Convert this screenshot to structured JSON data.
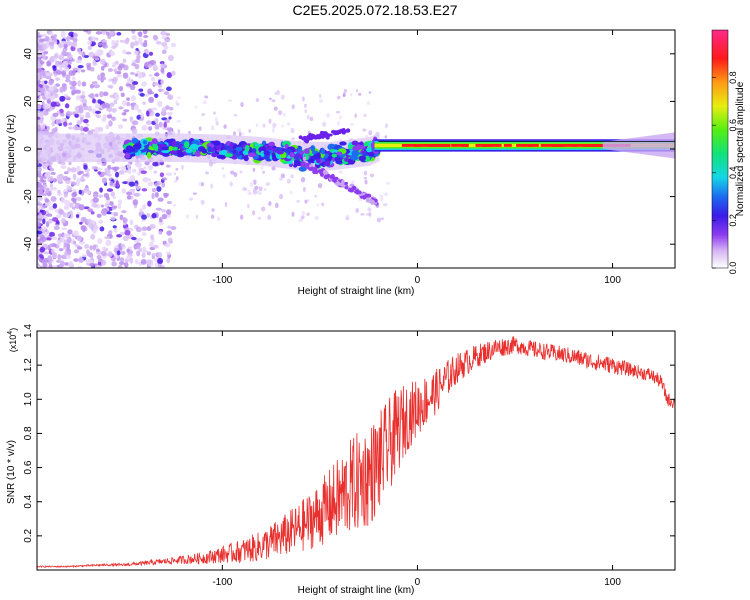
{
  "title": "C2E5.2025.072.18.53.E27",
  "colors": {
    "signal_line": "#e8302e",
    "axis": "#000000",
    "ridge": "#ff1a1a"
  },
  "chart_data": [
    {
      "type": "heatmap",
      "name": "spectrogram",
      "xlabel": "Height of straight line (km)",
      "ylabel": "Frequency (Hz)",
      "xlim": [
        -195,
        132
      ],
      "ylim": [
        -50,
        50
      ],
      "x_ticks": [
        {
          "value": -100,
          "label": "-100"
        },
        {
          "value": 0,
          "label": "0"
        },
        {
          "value": 100,
          "label": "100"
        }
      ],
      "y_ticks": [
        {
          "value": 40,
          "label": "40"
        },
        {
          "value": 20,
          "label": "20"
        },
        {
          "value": 0,
          "label": "0"
        },
        {
          "value": -20,
          "label": "-20"
        },
        {
          "value": -40,
          "label": "-40"
        }
      ],
      "ridge": [
        {
          "x": -190,
          "y": 0.5
        },
        {
          "x": -150,
          "y": 0.5
        },
        {
          "x": -120,
          "y": 0.5
        },
        {
          "x": -100,
          "y": 0
        },
        {
          "x": -80,
          "y": -1
        },
        {
          "x": -60,
          "y": -3
        },
        {
          "x": -45,
          "y": -3
        },
        {
          "x": -25,
          "y": -1
        },
        {
          "x": -20,
          "y": 1
        },
        {
          "x": 0,
          "y": 1.5
        },
        {
          "x": 50,
          "y": 1.5
        },
        {
          "x": 100,
          "y": 1.5
        },
        {
          "x": 132,
          "y": 1.5
        }
      ],
      "colorbar": {
        "label": "Normalized spectral amplitude",
        "range": [
          0,
          1
        ],
        "ticks": [
          {
            "value": 0.0,
            "label": "0.0"
          },
          {
            "value": 0.2,
            "label": "0.2"
          },
          {
            "value": 0.4,
            "label": "0.4"
          },
          {
            "value": 0.6,
            "label": "0.6"
          },
          {
            "value": 0.8,
            "label": "0.8"
          }
        ]
      }
    },
    {
      "type": "line",
      "name": "snr",
      "xlabel": "Height of straight line (km)",
      "ylabel": "SNR (10 * v/v)",
      "multiplier_label": "(x10",
      "multiplier_exp": "4",
      "xlim": [
        -195,
        132
      ],
      "ylim": [
        0,
        1.4
      ],
      "x_ticks": [
        {
          "value": -100,
          "label": "-100"
        },
        {
          "value": 0,
          "label": "0"
        },
        {
          "value": 100,
          "label": "100"
        }
      ],
      "y_ticks": [
        {
          "value": 0.2,
          "label": "0.2"
        },
        {
          "value": 0.4,
          "label": "0.4"
        },
        {
          "value": 0.6,
          "label": "0.6"
        },
        {
          "value": 0.8,
          "label": "0.8"
        },
        {
          "value": 1.0,
          "label": "1.0"
        },
        {
          "value": 1.2,
          "label": "1.2"
        },
        {
          "value": 1.4,
          "label": "1.4"
        }
      ],
      "series": [
        {
          "name": "SNR",
          "x": [
            -195,
            -180,
            -160,
            -150,
            -140,
            -130,
            -120,
            -110,
            -100,
            -90,
            -80,
            -70,
            -60,
            -50,
            -40,
            -35,
            -30,
            -25,
            -20,
            -15,
            -10,
            -5,
            0,
            5,
            10,
            15,
            20,
            30,
            40,
            50,
            60,
            70,
            80,
            90,
            100,
            110,
            120,
            125,
            128,
            132
          ],
          "values": [
            0.02,
            0.02,
            0.03,
            0.03,
            0.04,
            0.05,
            0.06,
            0.07,
            0.09,
            0.11,
            0.14,
            0.19,
            0.25,
            0.33,
            0.42,
            0.48,
            0.52,
            0.55,
            0.62,
            0.72,
            0.82,
            0.9,
            0.95,
            1.0,
            1.05,
            1.12,
            1.18,
            1.25,
            1.3,
            1.32,
            1.29,
            1.27,
            1.25,
            1.22,
            1.2,
            1.17,
            1.14,
            1.1,
            1.0,
            0.98
          ],
          "noise": [
            0.004,
            0.004,
            0.006,
            0.008,
            0.012,
            0.018,
            0.025,
            0.035,
            0.05,
            0.07,
            0.09,
            0.12,
            0.15,
            0.19,
            0.25,
            0.28,
            0.3,
            0.3,
            0.3,
            0.28,
            0.25,
            0.2,
            0.17,
            0.15,
            0.13,
            0.11,
            0.09,
            0.07,
            0.06,
            0.05,
            0.05,
            0.05,
            0.05,
            0.05,
            0.05,
            0.04,
            0.04,
            0.04,
            0.04,
            0.04
          ]
        }
      ]
    }
  ]
}
